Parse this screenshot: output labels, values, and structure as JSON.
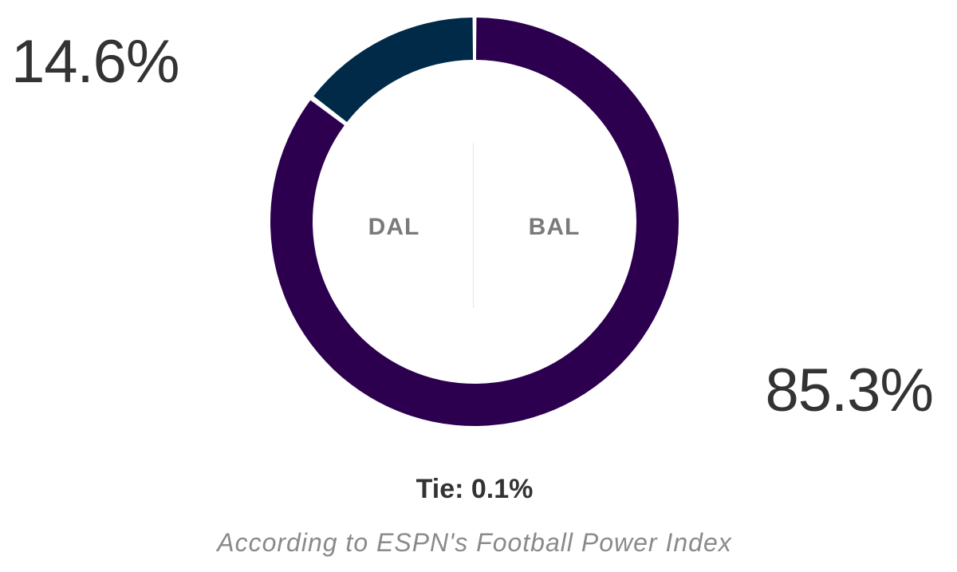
{
  "chart_data": {
    "type": "pie",
    "variant": "donut",
    "slices": [
      {
        "team": "BAL",
        "value": 85.3,
        "label": "85.3%",
        "color": "#2c004f"
      },
      {
        "team": "Tie",
        "value": 0.1,
        "color": "#ffffff"
      },
      {
        "team": "DAL",
        "value": 14.6,
        "label": "14.6%",
        "color": "#002a48"
      }
    ],
    "away_team": "DAL",
    "home_team": "BAL",
    "tie_text": "Tie: 0.1%",
    "source_text": "According to ESPN's Football Power Index"
  }
}
